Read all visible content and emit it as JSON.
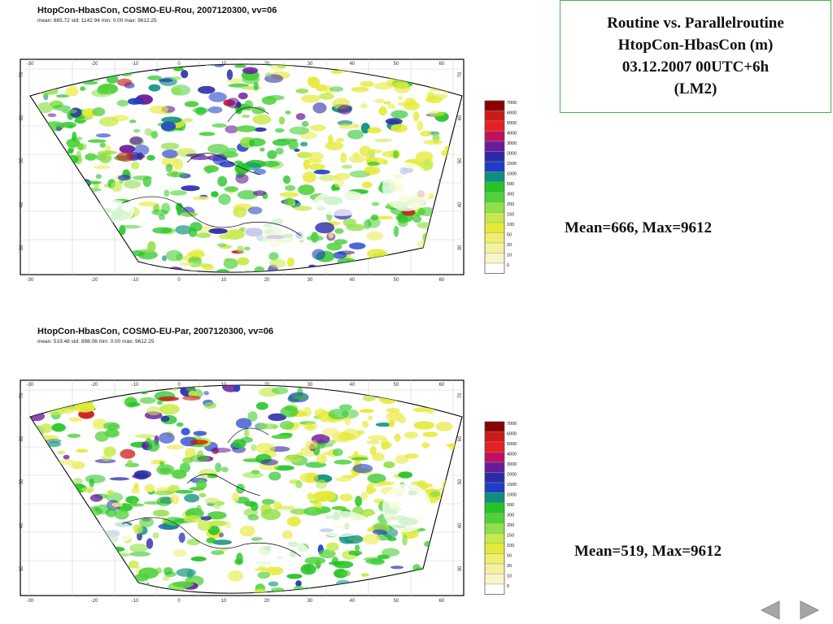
{
  "slide": {
    "title_lines": [
      "Routine vs. Parallelroutine",
      "HtopCon-HbasCon (m)",
      "03.12.2007 00UTC+6h",
      "(LM2)"
    ],
    "summary_top": "Mean=666, Max=9612",
    "summary_bottom": "Mean=519, Max=9612"
  },
  "maps": [
    {
      "title": "HtopCon-HbasCon, COSMO-EU-Rou, 2007120300, vv=06",
      "stats": "mean: 665.72 std: 1142.94 min: 0.00 max: 9612.25"
    },
    {
      "title": "HtopCon-HbasCon, COSMO-EU-Par, 2007120300, vv=06",
      "stats": "mean: 519.48 std: 898.06 min: 0.00 max: 9612.25"
    }
  ],
  "axis": {
    "lon_ticks": [
      "-30",
      "-20",
      "-10",
      "0",
      "10",
      "20",
      "30",
      "40",
      "50",
      "60"
    ],
    "lat_ticks": [
      "70",
      "60",
      "50",
      "40",
      "30"
    ]
  },
  "legend": {
    "labels": [
      "7000",
      "6000",
      "5000",
      "4000",
      "3000",
      "2000",
      "1500",
      "1000",
      "500",
      "300",
      "200",
      "150",
      "100",
      "50",
      "20",
      "10",
      "0"
    ],
    "colors": [
      "#8b0000",
      "#cc1a1a",
      "#e8201f",
      "#c01060",
      "#6a1b9a",
      "#2b2ba8",
      "#1e3ec8",
      "#0e8f7e",
      "#24c424",
      "#4fd13a",
      "#8fe04a",
      "#c6ea4a",
      "#e5ea3a",
      "#f0ee70",
      "#f4f2a0",
      "#f8f6c8",
      "#ffffff"
    ]
  },
  "navigation": {
    "prev_icon": "triangle-left-icon",
    "next_icon": "triangle-right-icon"
  }
}
